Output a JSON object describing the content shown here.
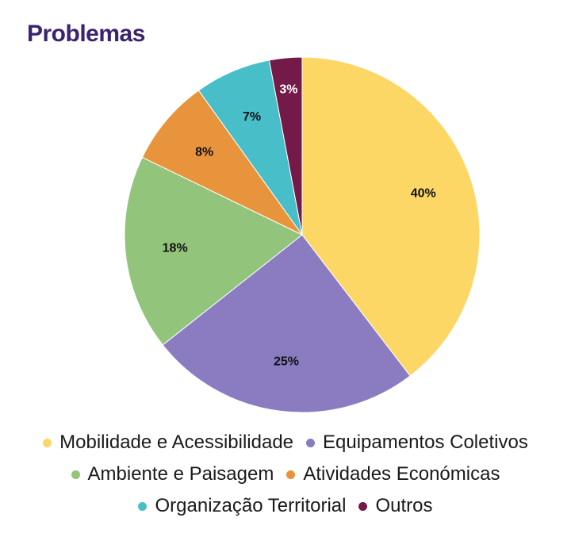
{
  "chart_data": {
    "type": "pie",
    "title": "Problemas",
    "slices": [
      {
        "label": "Mobilidade e Acessibilidade",
        "value": 40,
        "display": "40%",
        "color": "#fdd765"
      },
      {
        "label": "Equipamentos Coletivos",
        "value": 25,
        "display": "25%",
        "color": "#8b7cc2"
      },
      {
        "label": "Ambiente e Paisagem",
        "value": 18,
        "display": "18%",
        "color": "#92c47c"
      },
      {
        "label": "Atividades Económicas",
        "value": 8,
        "display": "8%",
        "color": "#e8943c"
      },
      {
        "label": "Organização Territorial",
        "value": 7,
        "display": "7%",
        "color": "#47bec8"
      },
      {
        "label": "Outros",
        "value": 3,
        "display": "3%",
        "color": "#731a48"
      }
    ],
    "legend_position": "bottom"
  },
  "colors": {
    "title": "#3b2370"
  }
}
